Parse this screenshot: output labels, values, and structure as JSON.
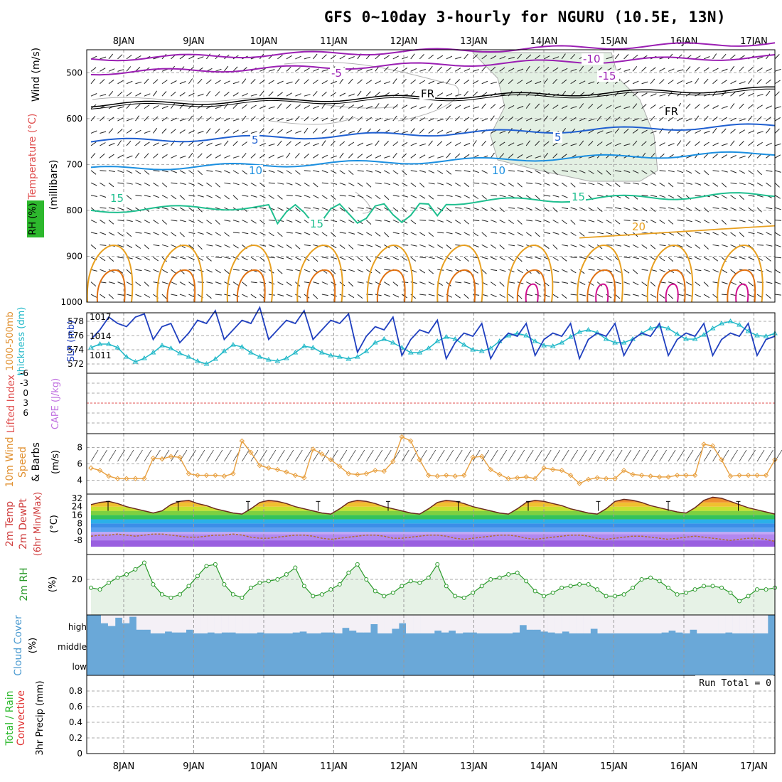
{
  "title": "GFS 0~10day 3-hourly for NGURU (10.5E, 13N)",
  "date_labels": [
    "8JAN",
    "9JAN",
    "10JAN",
    "11JAN",
    "12JAN",
    "13JAN",
    "14JAN",
    "15JAN",
    "16JAN",
    "17JAN"
  ],
  "colors": {
    "purple": "#9b1fb3",
    "black": "#000000",
    "blue": "#1f5fd0",
    "lightblue": "#1b8fe0",
    "green": "#1fbf8f",
    "orange": "#e8a020",
    "darkorange": "#e07010",
    "magenta": "#d0108f",
    "slp": "#1f3fbf",
    "thickness": "#20b8c8",
    "wind10m": "#e8a040",
    "rh": "#2a9a2a",
    "rhfill": "#e6f2e6",
    "cloud": "#6aa8d8",
    "cloudclear": "#f4f0f6",
    "dewpt": "#b07030"
  },
  "chart_data": [
    {
      "type": "contour",
      "panel": "upper_air",
      "ylabel_parts": [
        "Wind (m/s)",
        "Temperature (°C)",
        "RH (%)",
        "(millibars)"
      ],
      "y_ticks": [
        "500",
        "600",
        "700",
        "800",
        "900",
        "1000"
      ],
      "ylim": [
        450,
        1000
      ],
      "contour_labels": [
        "-10",
        "-15",
        "-5",
        "FR",
        "FR",
        "-10",
        "-5",
        "5",
        "5",
        "10",
        "10",
        "15",
        "15",
        "15",
        "20"
      ],
      "isotherms": [
        {
          "name": "-10",
          "pressure": 470
        },
        {
          "name": "-5",
          "pressure": 500
        },
        {
          "name": "FR",
          "pressure": 570
        },
        {
          "name": "5",
          "pressure": 650
        },
        {
          "name": "10",
          "pressure": 710
        },
        {
          "name": "15",
          "pressure": 800
        },
        {
          "name": "20",
          "pressure": 860
        }
      ]
    },
    {
      "type": "line",
      "panel": "slp_thickness",
      "ylabel_parts": [
        "1000-500mb",
        "thickness (dm)",
        "SLP (mb)"
      ],
      "left_ticks": [
        "572",
        "574",
        "576",
        "578"
      ],
      "right_ticks": [
        "1011",
        "1014",
        "1017"
      ],
      "series": [
        {
          "name": "SLP (mb)",
          "axis": "right",
          "values": [
            1013.5,
            1015.0,
            1017.0,
            1016.0,
            1015.5,
            1017.0,
            1017.5,
            1013.5,
            1015.5,
            1016.0,
            1013.0,
            1014.5,
            1016.5,
            1016.0,
            1018.0,
            1013.5,
            1015.0,
            1016.5,
            1016.0,
            1018.5,
            1013.5,
            1015.0,
            1016.5,
            1016.0,
            1018.0,
            1013.5,
            1015.0,
            1016.5,
            1016.0,
            1017.5,
            1011.5,
            1014.0,
            1015.5,
            1015.0,
            1017.0,
            1011.0,
            1013.5,
            1015.0,
            1014.5,
            1016.5,
            1010.5,
            1013.0,
            1014.5,
            1014.0,
            1016.0,
            1010.5,
            1013.0,
            1014.5,
            1014.0,
            1016.0,
            1011.0,
            1013.5,
            1014.5,
            1014.0,
            1016.0,
            1010.5,
            1013.5,
            1014.5,
            1014.0,
            1016.0,
            1011.0,
            1013.5,
            1014.5,
            1014.0,
            1016.0,
            1011.0,
            1013.5,
            1014.5,
            1014.0,
            1016.0,
            1011.0,
            1013.5,
            1014.5,
            1014.0,
            1016.0,
            1011.0,
            1013.5,
            1014.0
          ]
        },
        {
          "name": "1000-500mb thickness (dm)",
          "axis": "left",
          "values": [
            574.3,
            574.8,
            574.8,
            574.3,
            573.0,
            572.3,
            572.8,
            573.6,
            574.6,
            574.2,
            573.5,
            573.0,
            572.4,
            572.0,
            572.7,
            573.8,
            574.7,
            574.4,
            573.6,
            573.0,
            572.6,
            572.4,
            572.8,
            573.6,
            574.5,
            574.3,
            573.6,
            573.2,
            573.0,
            572.7,
            573.0,
            573.8,
            575.0,
            575.5,
            575.0,
            574.3,
            573.6,
            573.6,
            574.2,
            575.2,
            575.8,
            575.5,
            574.7,
            574.0,
            573.8,
            574.2,
            575.2,
            576.0,
            576.3,
            576.0,
            575.2,
            574.6,
            574.5,
            575.0,
            575.8,
            576.5,
            576.8,
            576.4,
            575.5,
            575.0,
            575.0,
            575.5,
            576.3,
            577.0,
            577.3,
            577.0,
            576.2,
            575.5,
            575.5,
            576.1,
            577.0,
            577.7,
            578.0,
            577.5,
            576.6,
            576.0,
            575.9,
            576.3
          ]
        }
      ]
    },
    {
      "type": "line",
      "panel": "instability",
      "ylabel_parts": [
        "Lifted Index",
        "CAPE (J/kg)"
      ],
      "y_ticks": [
        "-6",
        "-3",
        "0",
        "3",
        "6"
      ],
      "ylim": [
        6,
        -6
      ],
      "series": [
        {
          "name": "Lifted Index",
          "values": []
        },
        {
          "name": "CAPE (J/kg)",
          "values": []
        }
      ]
    },
    {
      "type": "line",
      "panel": "wind10m",
      "ylabel_parts": [
        "10m Wind",
        "Speed",
        "& Barbs",
        "(m/s)"
      ],
      "y_ticks": [
        "4",
        "6",
        "8"
      ],
      "ylim": [
        3,
        9.5
      ],
      "series": [
        {
          "name": "10m Wind Speed",
          "values": [
            5.5,
            5.2,
            4.5,
            4.2,
            4.2,
            4.2,
            4.2,
            6.7,
            6.6,
            6.9,
            6.8,
            4.8,
            4.6,
            4.6,
            4.6,
            4.5,
            4.8,
            8.8,
            7.4,
            5.8,
            5.5,
            5.3,
            5.0,
            4.6,
            4.3,
            7.8,
            7.2,
            6.5,
            5.7,
            4.8,
            4.7,
            4.8,
            5.2,
            5.1,
            6.3,
            9.3,
            8.8,
            6.5,
            4.6,
            4.5,
            4.6,
            4.5,
            4.6,
            6.8,
            6.9,
            5.3,
            4.7,
            4.2,
            4.3,
            4.4,
            4.2,
            5.5,
            5.3,
            5.2,
            4.6,
            3.6,
            4.1,
            4.3,
            4.2,
            4.2,
            5.2,
            4.7,
            4.6,
            4.5,
            4.4,
            4.4,
            4.6,
            4.6,
            4.6,
            8.4,
            8.2,
            6.5,
            4.5,
            4.6,
            4.6,
            4.6,
            4.6,
            6.5
          ]
        }
      ]
    },
    {
      "type": "area",
      "panel": "temp2m",
      "ylabel_parts": [
        "2m Temp",
        "2m DewPt",
        "(6hr Min/Max)",
        "(°C)"
      ],
      "y_ticks": [
        "-8",
        "0",
        "8",
        "16",
        "24",
        "32"
      ],
      "ylim": [
        -14,
        38
      ],
      "series": [
        {
          "name": "2m Temp",
          "values": [
            26,
            28,
            29,
            27,
            24,
            22,
            20,
            18,
            20,
            26,
            29,
            30,
            27,
            25,
            22,
            20,
            18,
            17,
            22,
            28,
            30,
            29,
            27,
            24,
            22,
            20,
            18,
            17,
            22,
            28,
            30,
            29,
            27,
            24,
            22,
            20,
            18,
            17,
            22,
            28,
            30,
            29,
            27,
            24,
            22,
            20,
            18,
            17,
            22,
            28,
            30,
            29,
            27,
            25,
            22,
            20,
            18,
            17,
            22,
            29,
            31,
            30,
            28,
            25,
            23,
            21,
            19,
            18,
            23,
            30,
            33,
            32,
            29,
            26,
            23,
            21,
            19,
            17
          ]
        },
        {
          "name": "2m DewPt",
          "values": [
            -4,
            -3,
            -3,
            -2,
            -3,
            -4,
            -3,
            -2,
            -2,
            -3,
            -4,
            -5,
            -5,
            -4,
            -3,
            -3,
            -2,
            -3,
            -5,
            -6,
            -6,
            -5,
            -4,
            -3,
            -3,
            -4,
            -6,
            -7,
            -6,
            -5,
            -4,
            -3,
            -3,
            -4,
            -6,
            -6,
            -5,
            -4,
            -3,
            -3,
            -4,
            -6,
            -7,
            -6,
            -5,
            -4,
            -3,
            -3,
            -4,
            -6,
            -7,
            -6,
            -5,
            -4,
            -3,
            -3,
            -4,
            -6,
            -7,
            -6,
            -5,
            -4,
            -4,
            -5,
            -6,
            -7,
            -6,
            -5,
            -4,
            -5,
            -6,
            -7,
            -8,
            -7,
            -6,
            -6,
            -7,
            -9
          ]
        }
      ]
    },
    {
      "type": "line",
      "panel": "rh2m",
      "ylabel_parts": [
        "2m RH",
        "(%)"
      ],
      "y_ticks": [
        "20"
      ],
      "ylim": [
        0,
        35
      ],
      "series": [
        {
          "name": "2m RH",
          "values": [
            15,
            14,
            18,
            21,
            23,
            26,
            30,
            17,
            11,
            9,
            11,
            16,
            22,
            28,
            29,
            17,
            11,
            9,
            15,
            18,
            19,
            20,
            23,
            27,
            16,
            10,
            11,
            14,
            17,
            24,
            29,
            20,
            13,
            10,
            12,
            16,
            19,
            18,
            21,
            29,
            16,
            10,
            9,
            12,
            16,
            20,
            21,
            23,
            24,
            19,
            13,
            10,
            12,
            15,
            16,
            17,
            17,
            14,
            10,
            10,
            11,
            15,
            20,
            21,
            19,
            15,
            11,
            12,
            14,
            16,
            16,
            15,
            12,
            7,
            10,
            14,
            14,
            15,
            16,
            17
          ]
        }
      ]
    },
    {
      "type": "bar",
      "panel": "cloud",
      "ylabel_parts": [
        "Cloud Cover",
        "(%)"
      ],
      "y_ticks": [
        "high",
        "middle",
        "low"
      ],
      "series": [
        {
          "name": "high cloud cover",
          "values": [
            100,
            100,
            55,
            40,
            85,
            55,
            90,
            20,
            20,
            0,
            0,
            10,
            5,
            5,
            20,
            0,
            0,
            5,
            0,
            5,
            5,
            0,
            0,
            0,
            5,
            0,
            0,
            0,
            0,
            5,
            10,
            0,
            0,
            5,
            5,
            0,
            30,
            15,
            5,
            5,
            50,
            0,
            0,
            25,
            55,
            0,
            0,
            0,
            0,
            15,
            5,
            15,
            0,
            5,
            5,
            0,
            0,
            0,
            0,
            0,
            5,
            45,
            20,
            20,
            10,
            5,
            0,
            10,
            0,
            0,
            0,
            25,
            0,
            0,
            0,
            0,
            0,
            0,
            0,
            0,
            0,
            5,
            15,
            5,
            0,
            20,
            0,
            0,
            0,
            0,
            5,
            0,
            0,
            0,
            0,
            0,
            100
          ]
        }
      ]
    },
    {
      "type": "bar",
      "panel": "precip",
      "ylabel_parts": [
        "Total / Rain",
        "Convective",
        "3hr Precip (mm)"
      ],
      "y_ticks": [
        "0",
        "0.2",
        "0.4",
        "0.6",
        "0.8"
      ],
      "ylim": [
        0,
        0.95
      ],
      "annotation": "Run Total = 0",
      "series": [
        {
          "name": "3hr Precip",
          "values": []
        }
      ]
    }
  ]
}
